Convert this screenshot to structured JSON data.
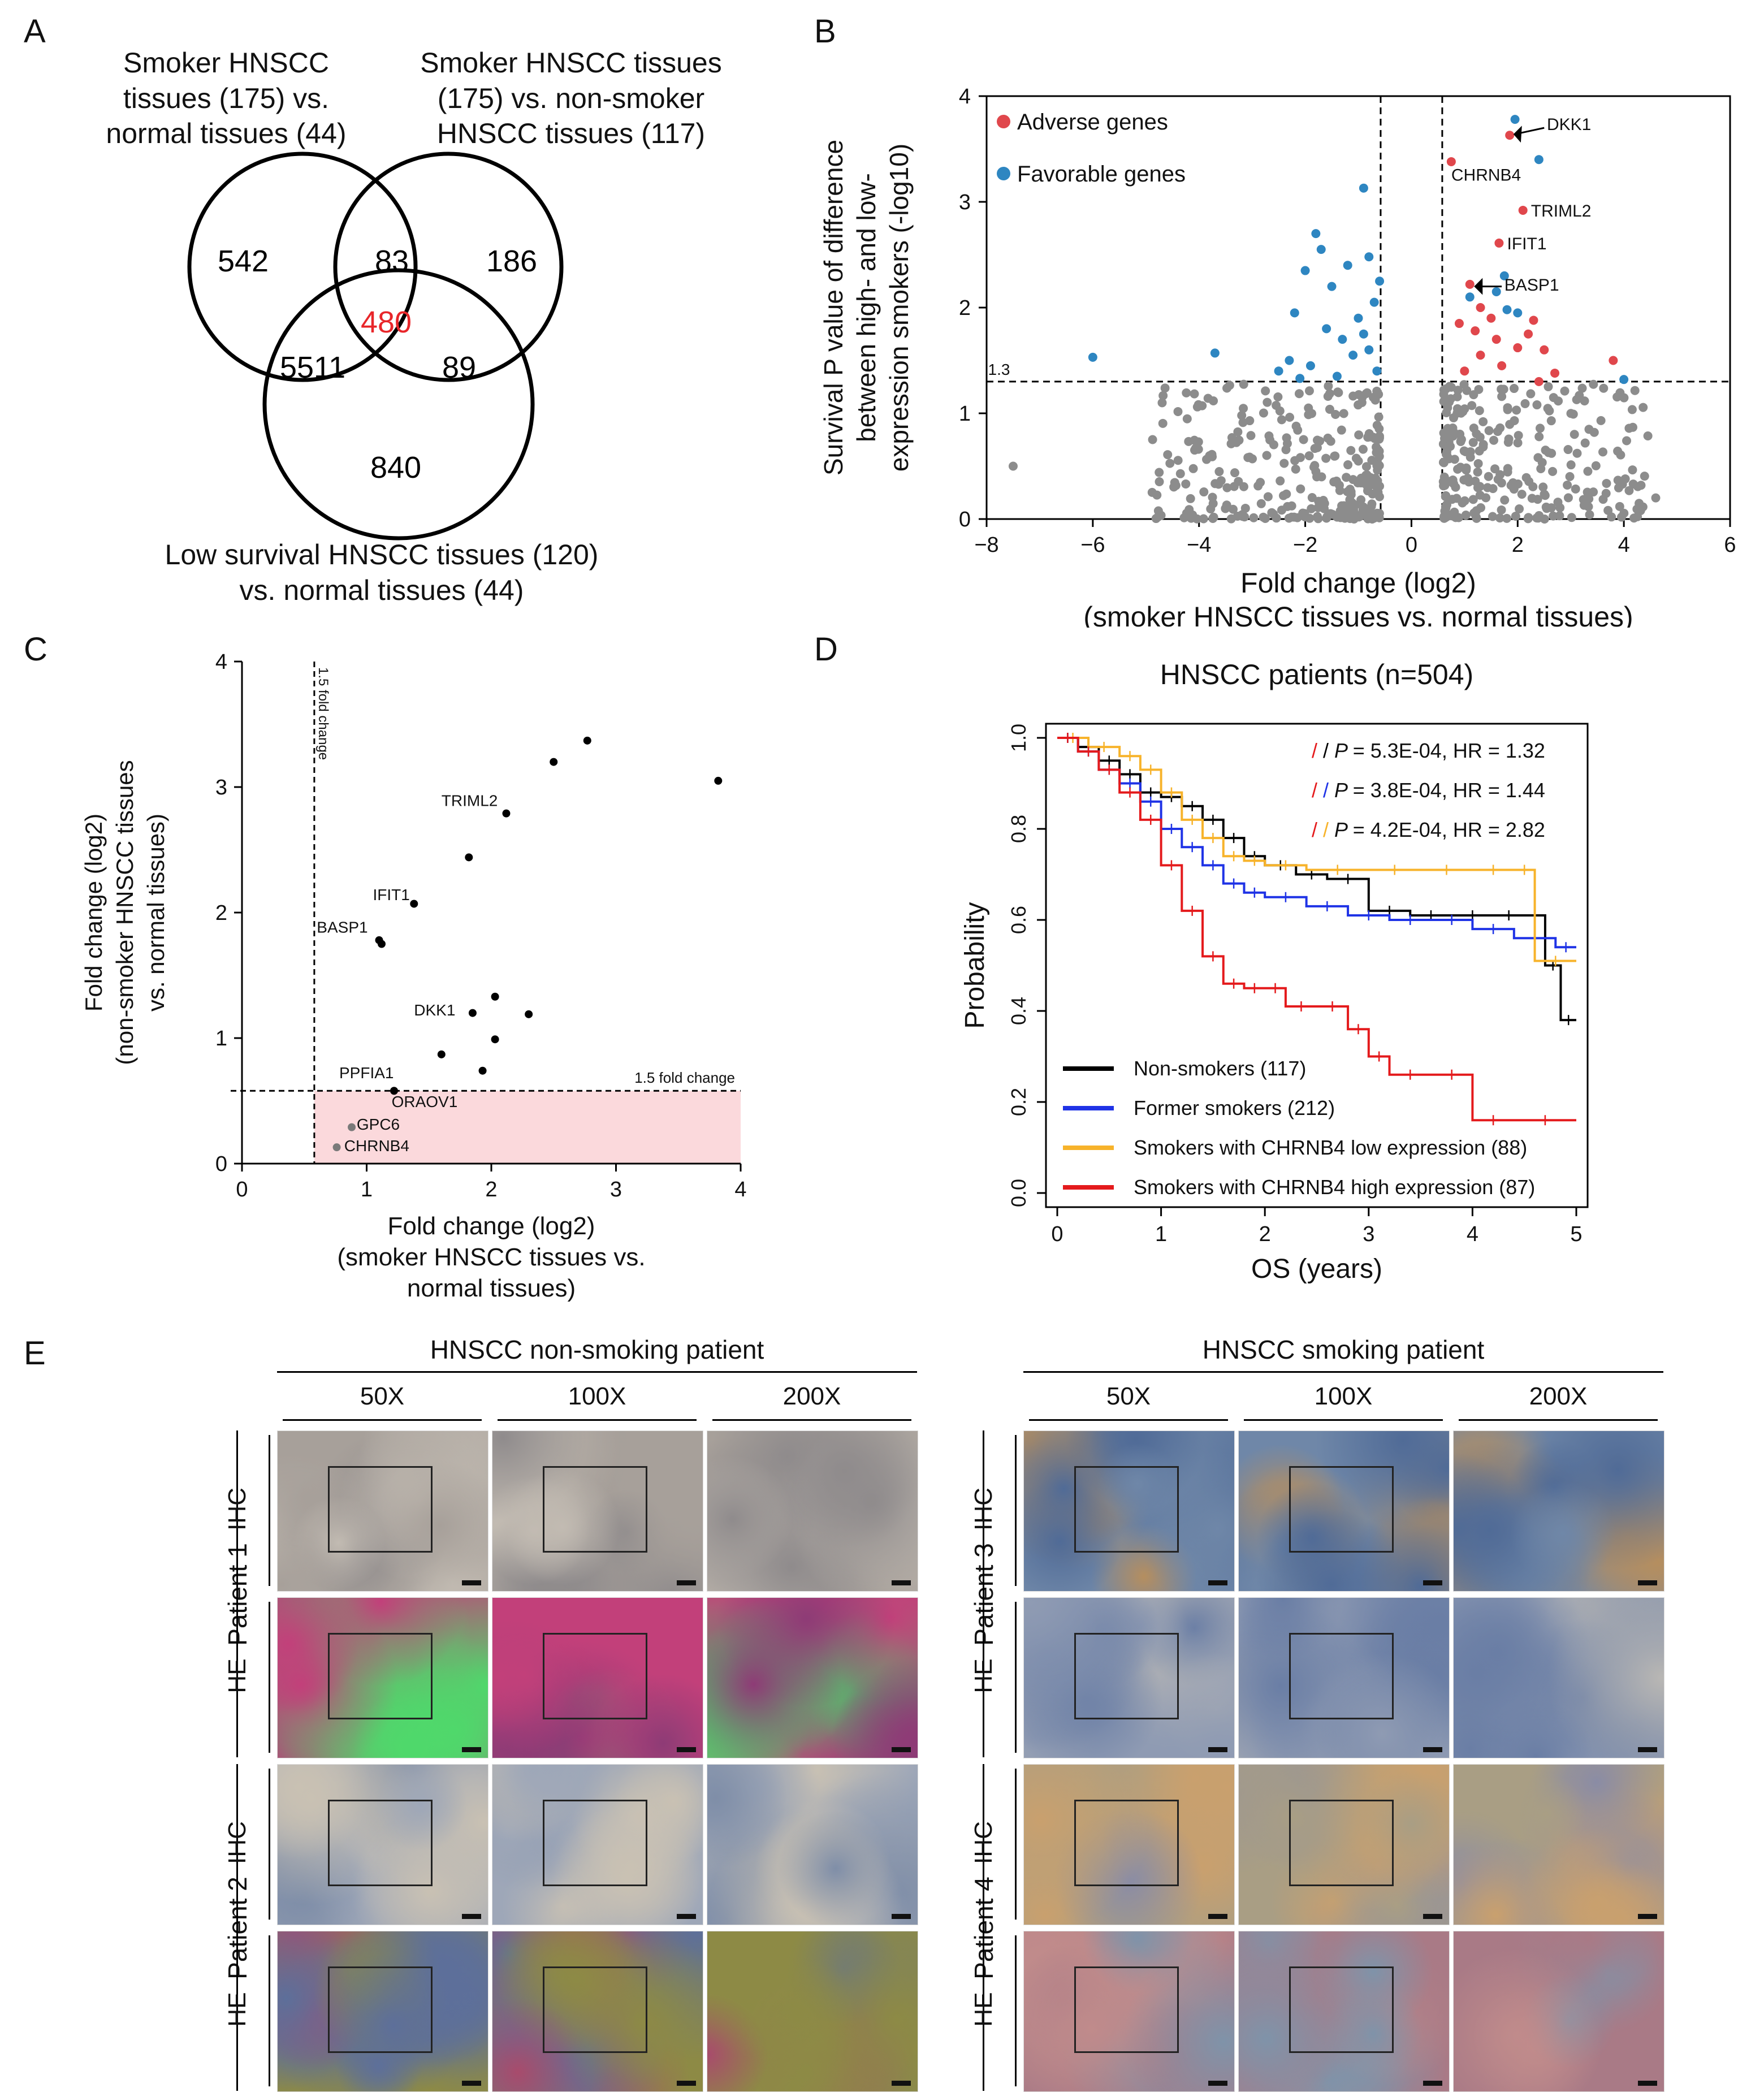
{
  "panels": {
    "a": "A",
    "b": "B",
    "c": "C",
    "d": "D",
    "e": "E"
  },
  "venn": {
    "label_left": [
      "Smoker HNSCC",
      "tissues (175) vs.",
      "normal tissues (44)"
    ],
    "label_right": [
      "Smoker HNSCC tissues",
      "(175) vs. non-smoker",
      "HNSCC tissues (117)"
    ],
    "label_bottom": [
      "Low survival HNSCC tissues (120)",
      "vs. normal tissues (44)"
    ],
    "n_left_only": "542",
    "n_left_right": "83",
    "n_right_only": "186",
    "n_center": "480",
    "n_left_bottom": "5511",
    "n_right_bottom": "89",
    "n_bottom_only": "840",
    "center_color": "#e8262a"
  },
  "chart_data": [
    {
      "id": "B",
      "type": "scatter",
      "ylabel_lines": [
        "Survival P value of difference",
        "between high- and low-",
        "expression smokers (-log10)"
      ],
      "xlabel_lines": [
        "Fold change (log2)",
        "(smoker HNSCC tissues vs. normal tissues)"
      ],
      "xlim": [
        -8,
        6
      ],
      "ylim": [
        0,
        4
      ],
      "xticks": [
        -8,
        -6,
        -4,
        -2,
        0,
        2,
        4,
        6
      ],
      "yticks": [
        0,
        1,
        2,
        3,
        4
      ],
      "threshold_label": "1.3",
      "threshold_y": 1.3,
      "vlines": [
        -0.58,
        0.58
      ],
      "legend": [
        {
          "label": "Adverse genes",
          "color": "#e0474c"
        },
        {
          "label": "Favorable genes",
          "color": "#2e86c1"
        }
      ],
      "colors": {
        "adverse": "#e0474c",
        "favorable": "#2e86c1",
        "other": "#8c8c8c"
      },
      "annotations": [
        {
          "label": "DKK1",
          "x": 1.85,
          "y": 3.65
        },
        {
          "label": "CHRNB4",
          "x": 0.75,
          "y": 3.37
        },
        {
          "label": "TRIML2",
          "x": 2.1,
          "y": 2.92
        },
        {
          "label": "IFIT1",
          "x": 1.65,
          "y": 2.61
        },
        {
          "label": "BASP1",
          "x": 1.1,
          "y": 2.22
        }
      ],
      "adverse": [
        [
          1.85,
          3.63
        ],
        [
          0.75,
          3.38
        ],
        [
          2.1,
          2.92
        ],
        [
          1.65,
          2.61
        ],
        [
          1.1,
          2.22
        ],
        [
          1.3,
          2.0
        ],
        [
          0.9,
          1.85
        ],
        [
          1.5,
          1.9
        ],
        [
          2.3,
          1.88
        ],
        [
          2.5,
          1.6
        ],
        [
          1.3,
          1.55
        ],
        [
          2.0,
          1.62
        ],
        [
          1.7,
          1.45
        ],
        [
          2.7,
          1.38
        ],
        [
          3.8,
          1.5
        ],
        [
          1.2,
          1.78
        ],
        [
          2.2,
          1.75
        ],
        [
          1.6,
          1.7
        ],
        [
          1.0,
          1.4
        ],
        [
          2.4,
          1.3
        ]
      ],
      "favorable": [
        [
          1.95,
          3.78
        ],
        [
          2.4,
          3.4
        ],
        [
          1.75,
          2.3
        ],
        [
          1.6,
          2.15
        ],
        [
          1.1,
          2.1
        ],
        [
          1.8,
          1.98
        ],
        [
          2.0,
          1.95
        ],
        [
          4.0,
          1.32
        ],
        [
          -6.0,
          1.53
        ],
        [
          -3.7,
          1.57
        ],
        [
          -0.9,
          3.13
        ],
        [
          -1.8,
          2.7
        ],
        [
          -1.7,
          2.55
        ],
        [
          -0.8,
          2.48
        ],
        [
          -1.2,
          2.4
        ],
        [
          -2.0,
          2.35
        ],
        [
          -0.6,
          2.25
        ],
        [
          -1.5,
          2.2
        ],
        [
          -0.7,
          2.05
        ],
        [
          -2.2,
          1.95
        ],
        [
          -1.0,
          1.9
        ],
        [
          -1.6,
          1.8
        ],
        [
          -0.9,
          1.75
        ],
        [
          -1.3,
          1.7
        ],
        [
          -2.3,
          1.5
        ],
        [
          -1.1,
          1.55
        ],
        [
          -0.8,
          1.6
        ],
        [
          -1.9,
          1.45
        ],
        [
          -2.5,
          1.4
        ],
        [
          -1.4,
          1.35
        ],
        [
          -0.65,
          1.4
        ],
        [
          -2.1,
          1.33
        ]
      ],
      "other_seed": 17,
      "other_count": 560
    },
    {
      "id": "C",
      "type": "scatter",
      "ylabel_lines": [
        "Fold change (log2)",
        "(non-smoker HNSCC tissues",
        "vs. normal tissues)"
      ],
      "xlabel_lines": [
        "Fold change (log2)",
        "(smoker HNSCC tissues vs.",
        "normal tissues)"
      ],
      "xlim": [
        0,
        4
      ],
      "ylim": [
        0,
        4
      ],
      "xticks": [
        0,
        1,
        2,
        3,
        4
      ],
      "yticks": [
        0,
        1,
        2,
        3,
        4
      ],
      "vline_label": "1.5 fold change",
      "hline_label": "1.5 fold change",
      "threshold": 0.58,
      "band_color": "#fbd9dc",
      "points": [
        [
          2.5,
          3.2
        ],
        [
          2.77,
          3.37
        ],
        [
          3.82,
          3.05
        ],
        [
          2.12,
          2.79
        ],
        [
          1.82,
          2.44
        ],
        [
          1.38,
          2.07
        ],
        [
          1.1,
          1.78
        ],
        [
          1.12,
          1.75
        ],
        [
          2.03,
          1.33
        ],
        [
          1.85,
          1.2
        ],
        [
          2.3,
          1.19
        ],
        [
          2.03,
          0.99
        ],
        [
          1.6,
          0.87
        ],
        [
          1.93,
          0.74
        ],
        [
          1.22,
          0.58
        ]
      ],
      "pink_points": [
        [
          0.88,
          0.29
        ],
        [
          0.76,
          0.13
        ]
      ],
      "annotations": [
        {
          "label": "TRIML2",
          "x": 1.6,
          "y": 2.85
        },
        {
          "label": "IFIT1",
          "x": 1.05,
          "y": 2.1
        },
        {
          "label": "BASP1",
          "x": 0.6,
          "y": 1.84
        },
        {
          "label": "DKK1",
          "x": 1.38,
          "y": 1.18
        },
        {
          "label": "PPFIA1",
          "x": 0.78,
          "y": 0.68
        },
        {
          "label": "ORAOV1",
          "x": 1.2,
          "y": 0.45
        },
        {
          "label": "GPC6",
          "x": 0.92,
          "y": 0.27
        },
        {
          "label": "CHRNB4",
          "x": 0.82,
          "y": 0.1
        }
      ]
    },
    {
      "id": "D",
      "type": "line",
      "title": "HNSCC patients (n=504)",
      "ylabel": "Probability",
      "xlabel": "OS (years)",
      "xlim": [
        0,
        5
      ],
      "ylim": [
        0,
        1
      ],
      "xticks": [
        0,
        1,
        2,
        3,
        4,
        5
      ],
      "yticks": [
        "0.0",
        "0.2",
        "0.4",
        "0.6",
        "0.8",
        "1.0"
      ],
      "stats": [
        {
          "c1": "#e41a1c",
          "c2": "#000000",
          "p": "P",
          "text": "= 5.3E-04, HR = 1.32"
        },
        {
          "c1": "#e41a1c",
          "c2": "#1f33e6",
          "p": "P",
          "text": "= 3.8E-04, HR = 1.44"
        },
        {
          "c1": "#e41a1c",
          "c2": "#f7b32b",
          "p": "P",
          "text": "= 4.2E-04, HR = 2.82"
        }
      ],
      "series": [
        {
          "name": "Non-smokers (117)",
          "color": "#000000",
          "x": [
            0,
            0.2,
            0.4,
            0.6,
            0.8,
            1.0,
            1.2,
            1.4,
            1.6,
            1.8,
            2.0,
            2.3,
            2.6,
            3.0,
            3.4,
            3.8,
            4.2,
            4.5,
            4.7,
            4.85,
            5.0
          ],
          "y": [
            1.0,
            0.98,
            0.95,
            0.92,
            0.88,
            0.87,
            0.85,
            0.82,
            0.78,
            0.74,
            0.72,
            0.7,
            0.69,
            0.62,
            0.61,
            0.61,
            0.61,
            0.61,
            0.5,
            0.38,
            0.38
          ]
        },
        {
          "name": "Former smokers (212)",
          "color": "#1f33e6",
          "x": [
            0,
            0.2,
            0.4,
            0.6,
            0.8,
            1.0,
            1.2,
            1.4,
            1.6,
            1.8,
            2.0,
            2.4,
            2.8,
            3.2,
            3.6,
            4.0,
            4.4,
            4.8,
            5.0
          ],
          "y": [
            1.0,
            0.97,
            0.93,
            0.9,
            0.86,
            0.8,
            0.76,
            0.72,
            0.68,
            0.66,
            0.65,
            0.63,
            0.61,
            0.6,
            0.6,
            0.58,
            0.56,
            0.54,
            0.54
          ]
        },
        {
          "name": "Smokers with CHRNB4 low expression (88)",
          "color": "#f7b32b",
          "x": [
            0,
            0.3,
            0.6,
            0.8,
            1.0,
            1.2,
            1.4,
            1.6,
            1.8,
            2.0,
            2.4,
            3.0,
            3.5,
            4.0,
            4.4,
            4.6,
            5.0
          ],
          "y": [
            1.0,
            0.98,
            0.96,
            0.93,
            0.88,
            0.82,
            0.78,
            0.74,
            0.73,
            0.72,
            0.71,
            0.71,
            0.71,
            0.71,
            0.71,
            0.51,
            0.51
          ]
        },
        {
          "name": "Smokers with CHRNB4 high expression (87)",
          "color": "#e41a1c",
          "x": [
            0,
            0.2,
            0.4,
            0.6,
            0.8,
            1.0,
            1.2,
            1.4,
            1.6,
            1.8,
            2.0,
            2.2,
            2.5,
            2.8,
            3.0,
            3.2,
            3.6,
            4.0,
            4.4,
            5.0
          ],
          "y": [
            1.0,
            0.97,
            0.93,
            0.88,
            0.82,
            0.72,
            0.62,
            0.52,
            0.46,
            0.45,
            0.45,
            0.41,
            0.41,
            0.36,
            0.3,
            0.26,
            0.26,
            0.16,
            0.16,
            0.16
          ]
        }
      ]
    }
  ],
  "panel_e": {
    "group_left": "HNSCC non-smoking patient",
    "group_right": "HNSCC smoking patient",
    "mags": [
      "50X",
      "100X",
      "200X"
    ],
    "patients_left": [
      "Patient 1",
      "Patient 2"
    ],
    "patients_right": [
      "Patient 3",
      "Patient 4"
    ],
    "stains": [
      "IHC",
      "HE"
    ],
    "palettes": {
      "p1_ihc": [
        "#a7a09a",
        "#8f8b8c",
        "#c2bbb2"
      ],
      "p1_he": [
        "#c2407a",
        "#4fd86b",
        "#8e3b76"
      ],
      "p2_ihc": [
        "#9ea7b8",
        "#c9c1b3",
        "#7f8ea8"
      ],
      "p2_he": [
        "#8d8a45",
        "#a84b6c",
        "#5d6f9a"
      ],
      "p3_ihc": [
        "#6f87a8",
        "#b58e5f",
        "#506b97"
      ],
      "p3_he": [
        "#8f9bb3",
        "#6a7ea5",
        "#b9b7b4"
      ],
      "p4_ihc": [
        "#a99e84",
        "#8a8ca5",
        "#c9a06e"
      ],
      "p4_he": [
        "#a97a86",
        "#7f93a9",
        "#c08b8b"
      ]
    }
  }
}
